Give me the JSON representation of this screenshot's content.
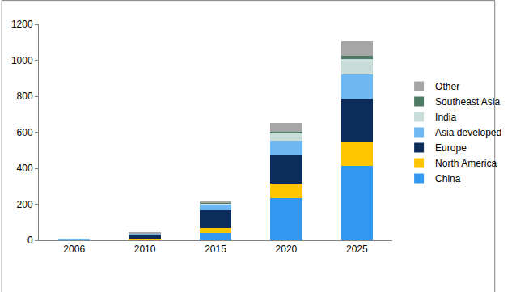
{
  "chart_data": {
    "type": "bar",
    "stacked": true,
    "legend": "right",
    "grid": false,
    "categories": [
      "2006",
      "2010",
      "2015",
      "2020",
      "2025"
    ],
    "ylim": [
      0,
      1200
    ],
    "yticks": [
      0,
      200,
      400,
      600,
      800,
      1000,
      1200
    ],
    "series": [
      {
        "name": "China",
        "color": "#3399f0",
        "values": [
          0,
          2,
          40,
          235,
          415
        ]
      },
      {
        "name": "North America",
        "color": "#ffc600",
        "values": [
          1,
          3,
          28,
          80,
          130
        ]
      },
      {
        "name": "Europe",
        "color": "#0c2d5c",
        "values": [
          3,
          30,
          97,
          155,
          243
        ]
      },
      {
        "name": "Asia developed",
        "color": "#6db7f2",
        "values": [
          1,
          5,
          33,
          85,
          132
        ]
      },
      {
        "name": "India",
        "color": "#c8ddd9",
        "values": [
          0,
          0,
          8,
          40,
          85
        ]
      },
      {
        "name": "Southeast Asia",
        "color": "#4e7b66",
        "values": [
          0,
          0,
          2,
          8,
          20
        ]
      },
      {
        "name": "Other",
        "color": "#a6a6a6",
        "values": [
          0,
          1,
          10,
          50,
          80
        ]
      }
    ]
  }
}
